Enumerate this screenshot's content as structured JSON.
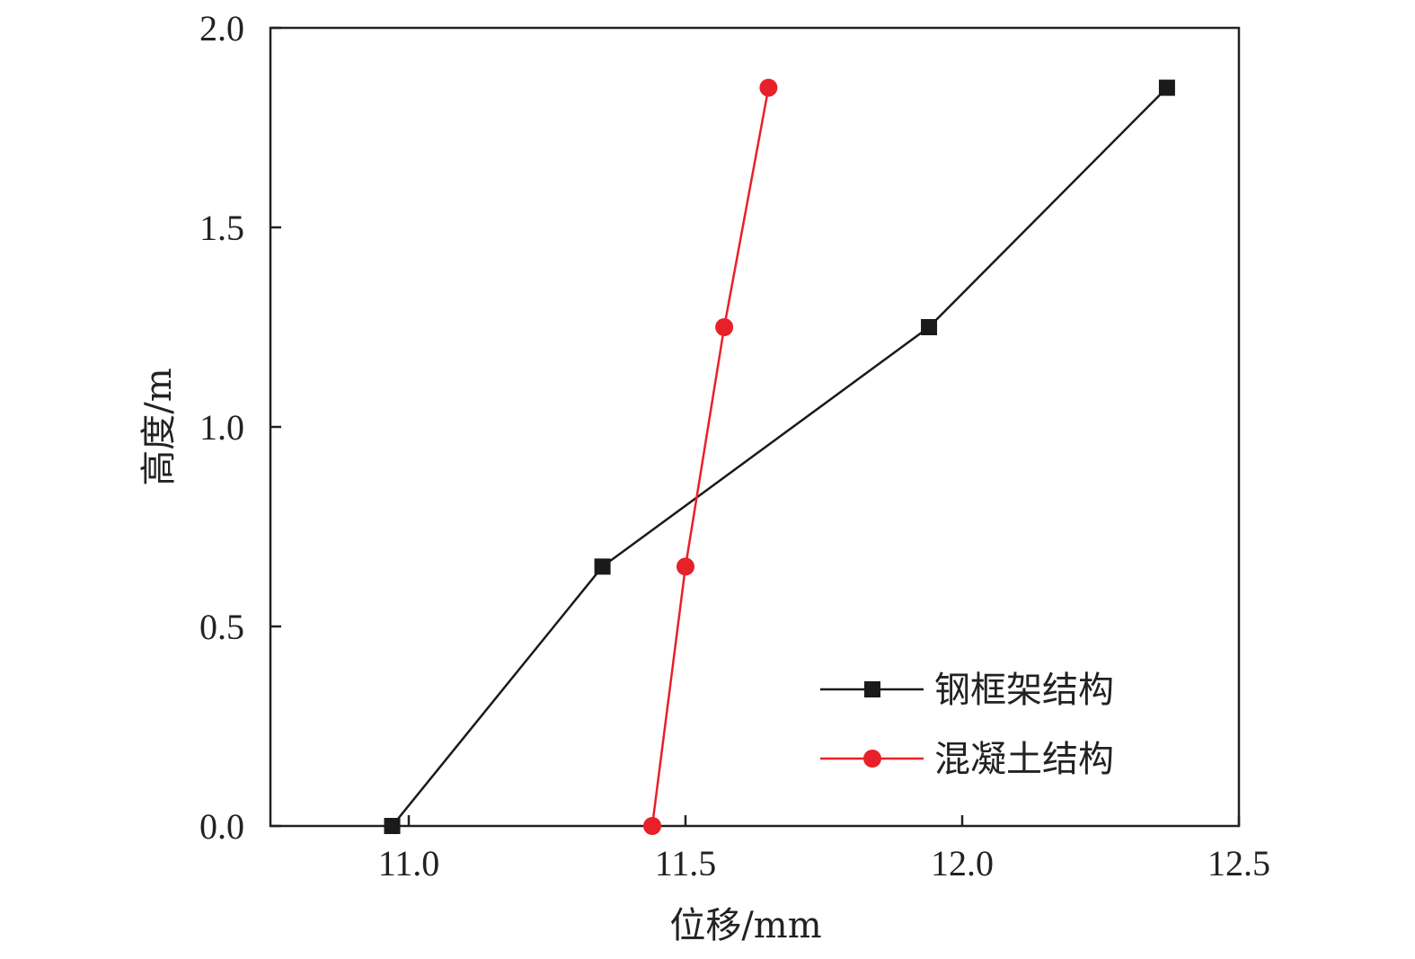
{
  "chart_data": {
    "type": "line",
    "title": "",
    "xlabel": "位移/mm",
    "ylabel": "高度/m",
    "xlim": [
      10.75,
      12.5
    ],
    "ylim": [
      0,
      2.0
    ],
    "xticks": [
      11.0,
      11.5,
      12.0,
      12.5
    ],
    "xtick_labels": [
      "11.0",
      "11.5",
      "12.0",
      "12.5"
    ],
    "yticks": [
      0.0,
      0.5,
      1.0,
      1.5,
      2.0
    ],
    "ytick_labels": [
      "0.0",
      "0.5",
      "1.0",
      "1.5",
      "2.0"
    ],
    "grid": false,
    "legend_position": "bottom-right",
    "series": [
      {
        "name": "钢框架结构",
        "marker": "square",
        "color": "#1a1a1a",
        "points": [
          {
            "x": 10.97,
            "y": 0.0
          },
          {
            "x": 11.35,
            "y": 0.65
          },
          {
            "x": 11.94,
            "y": 1.25
          },
          {
            "x": 12.37,
            "y": 1.85
          }
        ]
      },
      {
        "name": "混凝土结构",
        "marker": "circle",
        "color": "#e8202a",
        "points": [
          {
            "x": 11.44,
            "y": 0.0
          },
          {
            "x": 11.5,
            "y": 0.65
          },
          {
            "x": 11.57,
            "y": 1.25
          },
          {
            "x": 11.65,
            "y": 1.85
          }
        ]
      }
    ]
  }
}
